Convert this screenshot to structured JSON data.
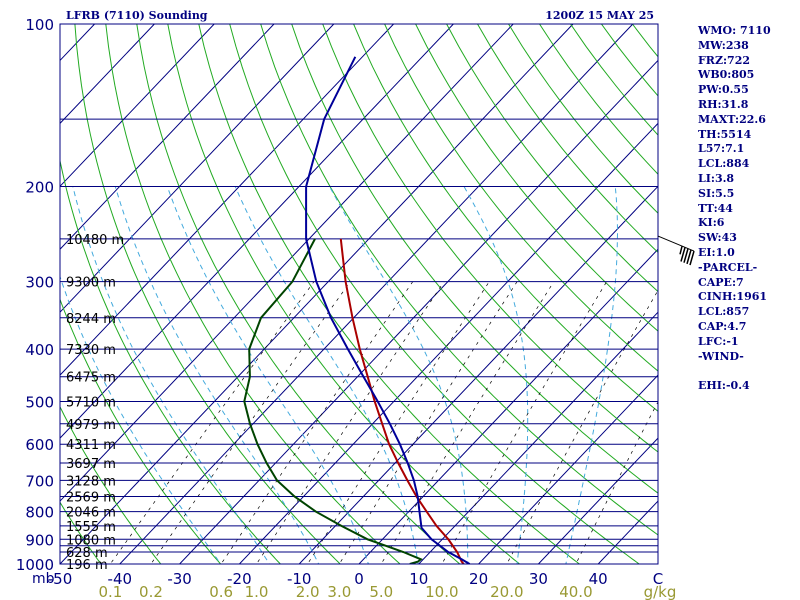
{
  "header": {
    "station_title": "LFRB (7110) Sounding",
    "time_label": "1200Z 15 MAY 25"
  },
  "colors": {
    "background": "#ffffff",
    "frame": "#000080",
    "isobar": "#000080",
    "isotherm": "#000080",
    "dry_adiabat": "#22aa22",
    "moist_adiabat": "#44aadd",
    "mixing_ratio": "#000000",
    "temperature": "#aa0000",
    "dewpoint": "#004400",
    "parcel": "#000099",
    "wind": "#000000",
    "bottom_labels": "#999933",
    "side_text": "#000080"
  },
  "axes": {
    "pressure_unit": "mb",
    "pressure_ticks": [
      "100",
      "200",
      "300",
      "400",
      "500",
      "600",
      "700",
      "800",
      "900",
      "1000"
    ],
    "temperature_ticks": [
      "-50",
      "-40",
      "-30",
      "-20",
      "-10",
      "0",
      "10",
      "20",
      "30",
      "40",
      "C"
    ],
    "mixing_ratio_ticks": [
      "0.1",
      "0.2",
      "0.6",
      "1.0",
      "2.0",
      "3.0",
      "5.0",
      "10.0",
      "20.0",
      "40.0",
      "g/kg"
    ]
  },
  "height_labels": [
    "10480 m",
    "9300 m",
    "8244 m",
    "7330 m",
    "6475 m",
    "5710 m",
    "4979 m",
    "4311 m",
    "3697 m",
    "3128 m",
    "2569 m",
    "2046 m",
    "1555 m",
    "1080 m",
    "628 m",
    "196 m"
  ],
  "side_panel": [
    "WMO: 7110",
    "MW:238",
    "FRZ:722",
    "WB0:805",
    "PW:0.55",
    "RH:31.8",
    "MAXT:22.6",
    "TH:5514",
    "L57:7.1",
    "LCL:884",
    "LI:3.8",
    "SI:5.5",
    "TT:44",
    "KI:6",
    "SW:43",
    "EI:1.0",
    "-PARCEL-",
    "CAPE:7",
    "CINH:1961",
    "LCL:857",
    "CAP:4.7",
    "LFC:-1",
    "-WIND-",
    "",
    "EHI:-0.4"
  ],
  "chart_data": {
    "type": "line",
    "title": "LFRB (7110) Sounding",
    "xlabel": "",
    "ylabel": "mb",
    "x_unit": "C",
    "pressure_range": [
      100,
      1000
    ],
    "temperature_range_at_1000mb": [
      -50,
      50
    ],
    "pressure_scale": "log",
    "grid": true,
    "isobars": [
      100,
      150,
      200,
      250,
      300,
      350,
      400,
      450,
      500,
      550,
      600,
      650,
      700,
      750,
      800,
      850,
      900,
      925,
      950,
      1000
    ],
    "height_levels": [
      {
        "p": 250,
        "height": "10480 m"
      },
      {
        "p": 300,
        "height": "9300 m"
      },
      {
        "p": 350,
        "height": "8244 m"
      },
      {
        "p": 400,
        "height": "7330 m"
      },
      {
        "p": 450,
        "height": "6475 m"
      },
      {
        "p": 500,
        "height": "5710 m"
      },
      {
        "p": 550,
        "height": "4979 m"
      },
      {
        "p": 600,
        "height": "4311 m"
      },
      {
        "p": 650,
        "height": "3697 m"
      },
      {
        "p": 700,
        "height": "3128 m"
      },
      {
        "p": 750,
        "height": "2569 m"
      },
      {
        "p": 800,
        "height": "2046 m"
      },
      {
        "p": 850,
        "height": "1555 m"
      },
      {
        "p": 900,
        "height": "1080 m"
      },
      {
        "p": 950,
        "height": "628 m"
      },
      {
        "p": 1000,
        "height": "196 m"
      }
    ],
    "mixing_ratio_lines": [
      0.1,
      0.2,
      0.6,
      1.0,
      2.0,
      3.0,
      5.0,
      10.0,
      20.0,
      40.0
    ],
    "series": [
      {
        "key": "temperature",
        "p": [
          1000,
          990,
          950,
          900,
          850,
          800,
          750,
          700,
          650,
          600,
          550,
          500,
          450,
          400,
          350,
          300,
          250
        ],
        "t": [
          17.5,
          16.8,
          14.5,
          11.0,
          6.9,
          3.0,
          -1.1,
          -5.2,
          -9.5,
          -14.0,
          -18.4,
          -23.2,
          -28.3,
          -34.0,
          -40.2,
          -47.1,
          -54.7
        ]
      },
      {
        "key": "dewpoint",
        "p": [
          1000,
          990,
          980,
          950,
          900,
          850,
          800,
          750,
          700,
          650,
          600,
          550,
          500,
          450,
          400,
          350,
          300,
          250
        ],
        "t": [
          8.5,
          9.5,
          9.6,
          5.5,
          -2.5,
          -9.0,
          -15.5,
          -21.5,
          -27.0,
          -31.5,
          -36.0,
          -40.5,
          -45.0,
          -48.0,
          -52.5,
          -55.5,
          -56.0,
          -59.0
        ]
      },
      {
        "key": "parcel",
        "p": [
          1000,
          980,
          950,
          900,
          857,
          800,
          750,
          700,
          650,
          600,
          550,
          500,
          450,
          400,
          350,
          300,
          250,
          200,
          150,
          115
        ],
        "t": [
          18.5,
          16.4,
          13.0,
          8.2,
          4.7,
          1.8,
          -0.9,
          -4.1,
          -7.9,
          -12.2,
          -17.1,
          -22.7,
          -29.0,
          -36.0,
          -43.8,
          -52.0,
          -60.5,
          -68.8,
          -76.5,
          -81.2
        ]
      }
    ],
    "wind_barbs": [
      {
        "p": 260,
        "dir": 255,
        "spd_kt": 45
      }
    ]
  }
}
